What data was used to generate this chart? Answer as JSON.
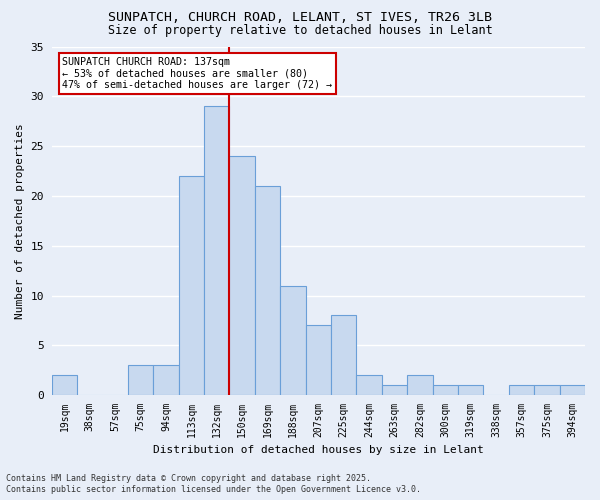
{
  "title_line1": "SUNPATCH, CHURCH ROAD, LELANT, ST IVES, TR26 3LB",
  "title_line2": "Size of property relative to detached houses in Lelant",
  "xlabel": "Distribution of detached houses by size in Lelant",
  "ylabel": "Number of detached properties",
  "bar_labels": [
    "19sqm",
    "38sqm",
    "57sqm",
    "75sqm",
    "94sqm",
    "113sqm",
    "132sqm",
    "150sqm",
    "169sqm",
    "188sqm",
    "207sqm",
    "225sqm",
    "244sqm",
    "263sqm",
    "282sqm",
    "300sqm",
    "319sqm",
    "338sqm",
    "357sqm",
    "375sqm",
    "394sqm"
  ],
  "bar_values": [
    2,
    0,
    0,
    3,
    3,
    22,
    29,
    24,
    21,
    11,
    7,
    8,
    2,
    1,
    2,
    1,
    1,
    0,
    1,
    1,
    1
  ],
  "bar_color": "#c8d9ef",
  "bar_edge_color": "#6a9fd8",
  "background_color": "#e8eef8",
  "grid_color": "#ffffff",
  "vline_color": "#cc0000",
  "annotation_text": "SUNPATCH CHURCH ROAD: 137sqm\n← 53% of detached houses are smaller (80)\n47% of semi-detached houses are larger (72) →",
  "annotation_box_color": "#ffffff",
  "annotation_box_edge": "#cc0000",
  "ylim": [
    0,
    35
  ],
  "yticks": [
    0,
    5,
    10,
    15,
    20,
    25,
    30,
    35
  ],
  "footnote": "Contains HM Land Registry data © Crown copyright and database right 2025.\nContains public sector information licensed under the Open Government Licence v3.0."
}
